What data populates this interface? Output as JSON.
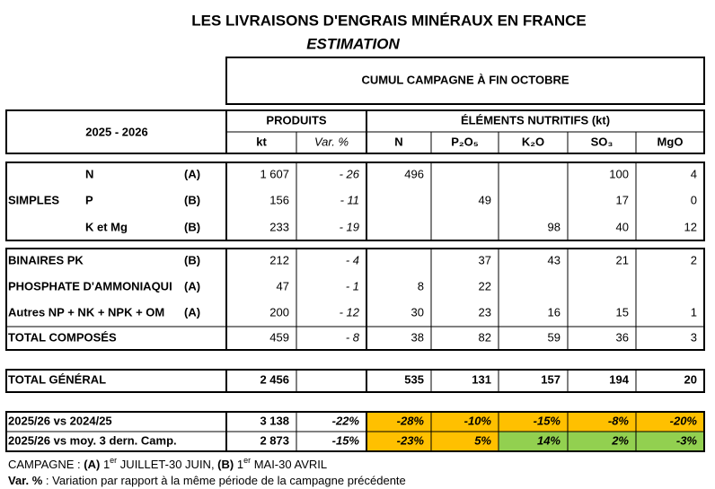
{
  "header": {
    "title": "LES LIVRAISONS D'ENGRAIS MINÉRAUX EN FRANCE",
    "subtitle": "ESTIMATION",
    "box": "CUMUL CAMPAGNE À FIN OCTOBRE"
  },
  "table": {
    "period": "2025 - 2026",
    "group_headers": [
      "PRODUITS",
      "ÉLÉMENTS NUTRITIFS (kt)"
    ],
    "columns": [
      "kt",
      "Var. %",
      "N",
      "P₂O₅",
      "K₂O",
      "SO₃",
      "MgO"
    ],
    "simples": {
      "label": "SIMPLES",
      "rows": [
        {
          "name": "N",
          "code": "(A)",
          "cells": [
            "1 607",
            "- 26",
            "496",
            null,
            null,
            "100",
            "4"
          ]
        },
        {
          "name": "P",
          "code": "(B)",
          "cells": [
            "156",
            "- 11",
            null,
            "49",
            null,
            "17",
            "0"
          ]
        },
        {
          "name": "K et Mg",
          "code": "(B)",
          "cells": [
            "233",
            "- 19",
            null,
            null,
            "98",
            "40",
            "12"
          ]
        }
      ]
    },
    "composes": [
      {
        "name": "BINAIRES PK",
        "code": "(B)",
        "cells": [
          "212",
          "- 4",
          null,
          "37",
          "43",
          "21",
          "2"
        ]
      },
      {
        "name": "PHOSPHATE D'AMMONIAQUI",
        "code": "(A)",
        "cells": [
          "47",
          "- 1",
          "8",
          "22",
          null,
          null,
          null
        ]
      },
      {
        "name": "Autres NP + NK + NPK + OM",
        "code": "(A)",
        "cells": [
          "200",
          "- 12",
          "30",
          "23",
          "16",
          "15",
          "1"
        ]
      },
      {
        "name": "TOTAL COMPOSÉS",
        "cells": [
          "459",
          "- 8",
          "38",
          "82",
          "59",
          "36",
          "3"
        ]
      }
    ],
    "total": {
      "name": "TOTAL GÉNÉRAL",
      "cells": [
        "2 456",
        null,
        "535",
        "131",
        "157",
        "194",
        "20"
      ]
    },
    "comparisons": [
      {
        "name": "2025/26 vs 2024/25",
        "cells": [
          "3 138",
          "-22%",
          "-28%",
          "-10%",
          "-15%",
          "-8%",
          "-20%"
        ],
        "colors": [
          null,
          "#ffc000",
          "#ffc000",
          "#ffc000",
          "#ffc000",
          "#ffc000",
          "#ffc000"
        ]
      },
      {
        "name": "2025/26 vs moy. 3 dern. Camp.",
        "cells": [
          "2 873",
          "-15%",
          "-23%",
          "5%",
          "14%",
          "2%",
          "-3%"
        ],
        "colors": [
          null,
          "#ffc000",
          "#ffc000",
          "#92d050",
          "#92d050",
          "#92d050",
          "#ffc000"
        ]
      }
    ]
  },
  "footnotes": [
    [
      {
        "text": "CAMPAGNE : "
      },
      {
        "text": "(A)",
        "bold": true
      },
      {
        "text": " 1"
      },
      {
        "text": "er",
        "sup": true
      },
      {
        "text": " JUILLET-30 JUIN, "
      },
      {
        "text": "(B)",
        "bold": true
      },
      {
        "text": " 1"
      },
      {
        "text": "er",
        "sup": true
      },
      {
        "text": " MAI-30 AVRIL"
      }
    ],
    [
      {
        "text": "Var. %",
        "bold": true
      },
      {
        "text": " : Variation par rapport à la même période de la campagne précédente"
      }
    ]
  ]
}
